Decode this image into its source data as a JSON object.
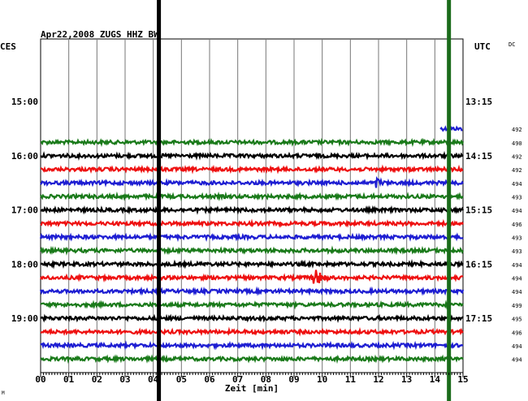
{
  "chart_data": {
    "type": "line",
    "title": "Apr22,2008   ZUGS HHZ BW",
    "left_axis_label": "CES",
    "right_axis_label": "UTC",
    "corner_label": "DC",
    "xlabel": "Zeit [min]",
    "xlim": [
      0,
      15
    ],
    "x_ticks": [
      "00",
      "01",
      "02",
      "03",
      "04",
      "05",
      "06",
      "07",
      "08",
      "09",
      "10",
      "11",
      "12",
      "13",
      "14",
      "15"
    ],
    "left_time_labels": [
      {
        "row": 4,
        "text": "15:00"
      },
      {
        "row": 8,
        "text": "16:00"
      },
      {
        "row": 12,
        "text": "17:00"
      },
      {
        "row": 16,
        "text": "18:00"
      },
      {
        "row": 20,
        "text": "19:00"
      }
    ],
    "right_time_labels": [
      {
        "row": 4,
        "text": "13:15"
      },
      {
        "row": 8,
        "text": "14:15"
      },
      {
        "row": 12,
        "text": "15:15"
      },
      {
        "row": 16,
        "text": "16:15"
      },
      {
        "row": 20,
        "text": "17:15"
      }
    ],
    "rows_visible": 24,
    "series": [
      {
        "row": 6,
        "color": "#1e1ed2",
        "dc": "492",
        "x_start": 14.2,
        "x_end": 15,
        "events": []
      },
      {
        "row": 7,
        "color": "#1a7a1a",
        "dc": "490",
        "x_start": 0,
        "x_end": 15,
        "events": []
      },
      {
        "row": 8,
        "color": "#000000",
        "dc": "492",
        "x_start": 0,
        "x_end": 15,
        "events": []
      },
      {
        "row": 9,
        "color": "#ee1111",
        "dc": "492",
        "x_start": 0,
        "x_end": 15,
        "events": []
      },
      {
        "row": 10,
        "color": "#1e1ed2",
        "dc": "494",
        "x_start": 0,
        "x_end": 15,
        "events": [
          {
            "x": 11.9,
            "amp": 8,
            "dur": 0.8
          }
        ]
      },
      {
        "row": 11,
        "color": "#1a7a1a",
        "dc": "493",
        "x_start": 0,
        "x_end": 15,
        "events": []
      },
      {
        "row": 12,
        "color": "#000000",
        "dc": "494",
        "x_start": 0,
        "x_end": 15,
        "events": []
      },
      {
        "row": 13,
        "color": "#ee1111",
        "dc": "496",
        "x_start": 0,
        "x_end": 15,
        "events": []
      },
      {
        "row": 14,
        "color": "#1e1ed2",
        "dc": "493",
        "x_start": 0,
        "x_end": 15,
        "events": []
      },
      {
        "row": 15,
        "color": "#1a7a1a",
        "dc": "493",
        "x_start": 0,
        "x_end": 15,
        "events": []
      },
      {
        "row": 16,
        "color": "#000000",
        "dc": "494",
        "x_start": 0,
        "x_end": 15,
        "events": []
      },
      {
        "row": 17,
        "color": "#ee1111",
        "dc": "494",
        "x_start": 0,
        "x_end": 15,
        "events": [
          {
            "x": 9.65,
            "amp": 15,
            "dur": 1.1
          }
        ]
      },
      {
        "row": 18,
        "color": "#1e1ed2",
        "dc": "494",
        "x_start": 0,
        "x_end": 15,
        "events": []
      },
      {
        "row": 19,
        "color": "#1a7a1a",
        "dc": "499",
        "x_start": 0,
        "x_end": 15,
        "events": []
      },
      {
        "row": 20,
        "color": "#000000",
        "dc": "495",
        "x_start": 0,
        "x_end": 15,
        "events": []
      },
      {
        "row": 21,
        "color": "#ee1111",
        "dc": "496",
        "x_start": 0,
        "x_end": 15,
        "events": []
      },
      {
        "row": 22,
        "color": "#1e1ed2",
        "dc": "494",
        "x_start": 0,
        "x_end": 15,
        "events": []
      },
      {
        "row": 23,
        "color": "#1a7a1a",
        "dc": "494",
        "x_start": 0,
        "x_end": 15,
        "events": []
      }
    ],
    "markers": [
      {
        "x": 4.2,
        "color": "#000000"
      },
      {
        "x": 14.5,
        "color": "#1a6b1a"
      }
    ],
    "grid": true
  }
}
